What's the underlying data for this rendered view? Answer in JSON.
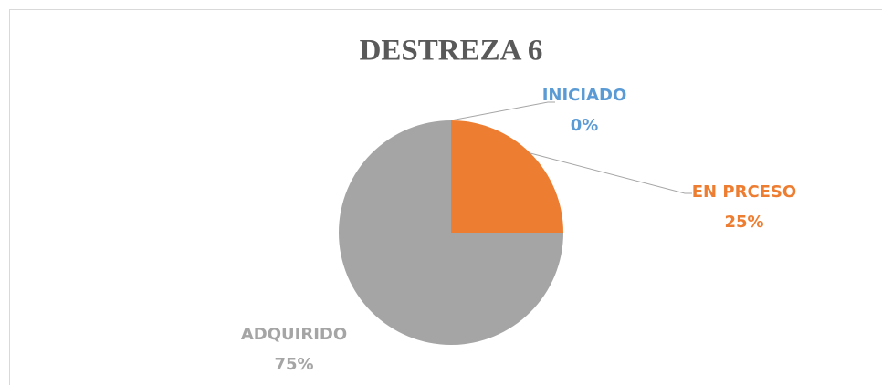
{
  "chart_data": {
    "type": "pie",
    "title": "DESTREZA 6",
    "categories": [
      "INICIADO",
      "EN PRCESO",
      "ADQUIRIDO"
    ],
    "values": [
      0,
      25,
      75
    ],
    "value_labels": [
      "0%",
      "25%",
      "75%"
    ],
    "colors": [
      "#5B9BD5",
      "#ED7D31",
      "#A5A5A5"
    ]
  }
}
